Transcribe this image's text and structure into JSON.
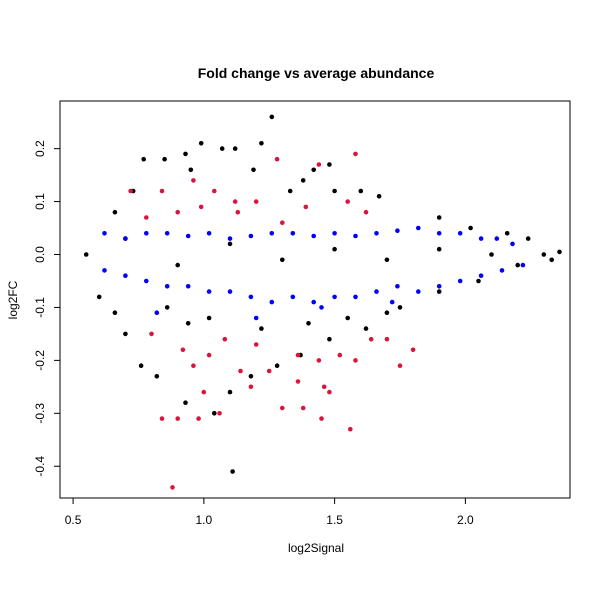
{
  "chart_data": {
    "type": "scatter",
    "title": "Fold change vs average abundance",
    "xlabel": "log2Signal",
    "ylabel": "log2FC",
    "xlim": [
      0.45,
      2.4
    ],
    "ylim": [
      -0.46,
      0.29
    ],
    "grid": false,
    "x_ticks": [
      0.5,
      1.0,
      1.5,
      2.0
    ],
    "x_tick_labels": [
      "0.5",
      "1.0",
      "1.5",
      "2.0"
    ],
    "y_ticks": [
      -0.4,
      -0.3,
      -0.2,
      -0.1,
      0.0,
      0.1,
      0.2
    ],
    "y_tick_labels": [
      "-0.4",
      "-0.3",
      "-0.2",
      "-0.1",
      "0.0",
      "0.1",
      "0.2"
    ],
    "colors": {
      "background": "#000000",
      "blue": "#0000ff",
      "red": "#dc143c",
      "frame": "#000000"
    },
    "series": [
      {
        "color": "#000000",
        "points": [
          [
            0.55,
            0.0
          ],
          [
            0.7,
            0.03
          ],
          [
            0.9,
            -0.02
          ],
          [
            1.1,
            0.02
          ],
          [
            1.3,
            -0.01
          ],
          [
            1.5,
            0.01
          ],
          [
            1.7,
            -0.01
          ],
          [
            1.9,
            0.01
          ],
          [
            2.1,
            0.0
          ],
          [
            2.3,
            0.0
          ],
          [
            1.26,
            0.26
          ],
          [
            1.22,
            0.21
          ],
          [
            0.99,
            0.21
          ],
          [
            1.12,
            0.2
          ],
          [
            1.07,
            0.2
          ],
          [
            0.85,
            0.18
          ],
          [
            0.77,
            0.18
          ],
          [
            0.93,
            0.19
          ],
          [
            0.95,
            0.16
          ],
          [
            1.19,
            0.16
          ],
          [
            1.42,
            0.16
          ],
          [
            1.48,
            0.17
          ],
          [
            1.38,
            0.14
          ],
          [
            1.6,
            0.12
          ],
          [
            1.67,
            0.11
          ],
          [
            1.5,
            0.12
          ],
          [
            1.33,
            0.12
          ],
          [
            0.73,
            0.12
          ],
          [
            0.66,
            0.08
          ],
          [
            1.9,
            0.07
          ],
          [
            2.02,
            0.05
          ],
          [
            2.16,
            0.04
          ],
          [
            2.24,
            0.03
          ],
          [
            2.36,
            0.005
          ],
          [
            2.33,
            -0.01
          ],
          [
            2.2,
            -0.02
          ],
          [
            2.05,
            -0.05
          ],
          [
            1.9,
            -0.07
          ],
          [
            1.75,
            -0.1
          ],
          [
            1.62,
            -0.14
          ],
          [
            1.48,
            -0.16
          ],
          [
            1.37,
            -0.19
          ],
          [
            1.28,
            -0.21
          ],
          [
            1.18,
            -0.23
          ],
          [
            1.1,
            -0.26
          ],
          [
            1.04,
            -0.3
          ],
          [
            0.93,
            -0.28
          ],
          [
            0.82,
            -0.23
          ],
          [
            0.76,
            -0.21
          ],
          [
            0.7,
            -0.15
          ],
          [
            0.66,
            -0.11
          ],
          [
            0.6,
            -0.08
          ],
          [
            1.11,
            -0.41
          ],
          [
            1.02,
            -0.12
          ],
          [
            0.94,
            -0.13
          ],
          [
            0.86,
            -0.1
          ],
          [
            1.22,
            -0.14
          ],
          [
            1.4,
            -0.13
          ],
          [
            1.55,
            -0.12
          ],
          [
            1.7,
            -0.11
          ]
        ]
      },
      {
        "color": "#0000ff",
        "points": [
          [
            0.62,
            0.04
          ],
          [
            0.7,
            0.03
          ],
          [
            0.78,
            0.04
          ],
          [
            0.86,
            0.04
          ],
          [
            0.94,
            0.035
          ],
          [
            1.02,
            0.04
          ],
          [
            1.1,
            0.03
          ],
          [
            1.18,
            0.035
          ],
          [
            1.26,
            0.04
          ],
          [
            1.34,
            0.04
          ],
          [
            1.42,
            0.035
          ],
          [
            1.5,
            0.04
          ],
          [
            1.58,
            0.035
          ],
          [
            1.66,
            0.04
          ],
          [
            1.74,
            0.045
          ],
          [
            1.82,
            0.05
          ],
          [
            1.9,
            0.04
          ],
          [
            1.98,
            0.04
          ],
          [
            2.06,
            0.03
          ],
          [
            2.12,
            0.03
          ],
          [
            2.18,
            0.02
          ],
          [
            2.22,
            -0.02
          ],
          [
            2.14,
            -0.03
          ],
          [
            2.06,
            -0.04
          ],
          [
            1.98,
            -0.05
          ],
          [
            1.9,
            -0.06
          ],
          [
            1.82,
            -0.07
          ],
          [
            1.74,
            -0.06
          ],
          [
            1.66,
            -0.07
          ],
          [
            1.58,
            -0.08
          ],
          [
            1.5,
            -0.08
          ],
          [
            1.42,
            -0.09
          ],
          [
            1.34,
            -0.08
          ],
          [
            1.26,
            -0.09
          ],
          [
            1.18,
            -0.08
          ],
          [
            1.1,
            -0.07
          ],
          [
            1.02,
            -0.07
          ],
          [
            0.94,
            -0.06
          ],
          [
            0.86,
            -0.06
          ],
          [
            0.78,
            -0.05
          ],
          [
            0.7,
            -0.04
          ],
          [
            0.62,
            -0.03
          ],
          [
            0.82,
            -0.11
          ],
          [
            1.2,
            -0.12
          ],
          [
            1.45,
            -0.1
          ],
          [
            1.72,
            -0.09
          ]
        ]
      },
      {
        "color": "#dc143c",
        "points": [
          [
            0.88,
            -0.44
          ],
          [
            0.84,
            -0.31
          ],
          [
            0.9,
            -0.31
          ],
          [
            0.98,
            -0.31
          ],
          [
            1.06,
            -0.3
          ],
          [
            1.3,
            -0.29
          ],
          [
            1.38,
            -0.29
          ],
          [
            1.45,
            -0.31
          ],
          [
            1.56,
            -0.33
          ],
          [
            1.46,
            -0.25
          ],
          [
            1.48,
            -0.26
          ],
          [
            1.36,
            -0.24
          ],
          [
            1.25,
            -0.22
          ],
          [
            1.18,
            -0.25
          ],
          [
            1.14,
            -0.22
          ],
          [
            1.0,
            -0.26
          ],
          [
            0.96,
            -0.21
          ],
          [
            0.92,
            -0.18
          ],
          [
            0.8,
            -0.15
          ],
          [
            1.02,
            -0.19
          ],
          [
            1.08,
            -0.16
          ],
          [
            1.2,
            -0.17
          ],
          [
            1.36,
            -0.19
          ],
          [
            1.44,
            -0.2
          ],
          [
            1.52,
            -0.19
          ],
          [
            1.58,
            -0.2
          ],
          [
            1.64,
            -0.16
          ],
          [
            1.7,
            -0.16
          ],
          [
            1.75,
            -0.21
          ],
          [
            1.8,
            -0.18
          ],
          [
            0.72,
            0.12
          ],
          [
            0.84,
            0.12
          ],
          [
            0.96,
            0.14
          ],
          [
            1.04,
            0.12
          ],
          [
            1.12,
            0.1
          ],
          [
            1.2,
            0.1
          ],
          [
            1.28,
            0.18
          ],
          [
            1.44,
            0.17
          ],
          [
            1.58,
            0.19
          ],
          [
            1.55,
            0.1
          ],
          [
            1.62,
            0.08
          ],
          [
            1.3,
            0.06
          ],
          [
            0.78,
            0.07
          ],
          [
            0.9,
            0.08
          ],
          [
            0.99,
            0.09
          ],
          [
            1.13,
            0.08
          ],
          [
            1.39,
            0.09
          ]
        ]
      }
    ]
  }
}
